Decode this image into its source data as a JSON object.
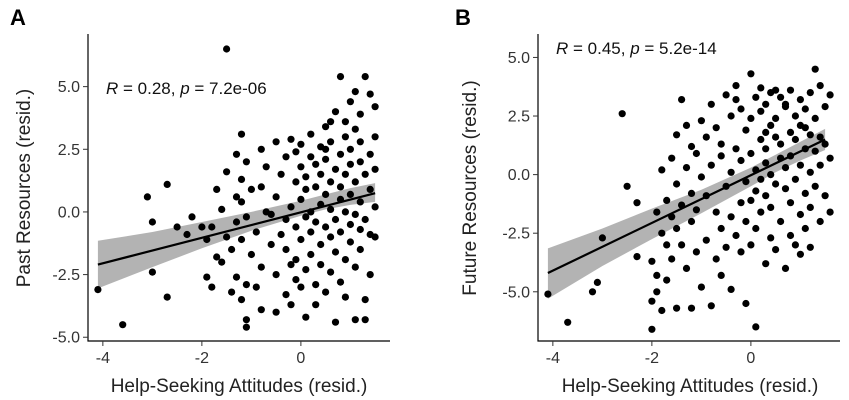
{
  "chart_data": [
    {
      "type": "scatter",
      "panel": "A",
      "xlabel": "Help-Seeking Attitudes (resid.)",
      "ylabel": "Past Resources (resid.)",
      "xlim": [
        -4.3,
        1.8
      ],
      "ylim": [
        -5.15,
        7.1
      ],
      "x_ticks": [
        -4,
        -2,
        0
      ],
      "x_tick_labels": [
        "-4",
        "-2",
        "0"
      ],
      "y_ticks": [
        -5,
        -2.5,
        0,
        2.5,
        5
      ],
      "y_tick_labels": [
        "-5.0",
        "-2.5",
        "0.0",
        "2.5",
        "5.0"
      ],
      "grid": false,
      "annotation": {
        "R_label": "R",
        "r_text": " = 0.28, ",
        "p_label": "p",
        "p_text": " = 7.2e-06"
      },
      "fit_line": {
        "x": [
          -4.1,
          1.5
        ],
        "y": [
          -2.1,
          0.75
        ]
      },
      "confidence_band": {
        "x": [
          -4.1,
          -3.0,
          -2.0,
          -1.0,
          0.0,
          0.5,
          1.0,
          1.5
        ],
        "lower": [
          -3.05,
          -2.2,
          -1.45,
          -0.75,
          -0.15,
          0.1,
          0.28,
          0.4
        ],
        "upper": [
          -1.15,
          -0.8,
          -0.4,
          -0.0,
          0.45,
          0.7,
          0.95,
          1.15
        ]
      },
      "points": [
        [
          -1.5,
          6.5
        ],
        [
          -4.1,
          -3.1
        ],
        [
          -3.6,
          -4.5
        ],
        [
          -3.1,
          0.6
        ],
        [
          -3.0,
          -0.4
        ],
        [
          -3.0,
          -2.4
        ],
        [
          -2.7,
          1.1
        ],
        [
          -2.7,
          -3.4
        ],
        [
          -2.5,
          -0.6
        ],
        [
          -2.3,
          -0.9
        ],
        [
          -2.2,
          -0.2
        ],
        [
          -2.0,
          -0.6
        ],
        [
          -1.9,
          -1.1
        ],
        [
          -1.9,
          -2.6
        ],
        [
          -1.8,
          -3.0
        ],
        [
          -1.8,
          -0.6
        ],
        [
          -1.7,
          -1.8
        ],
        [
          -1.7,
          0.9
        ],
        [
          -1.6,
          0.1
        ],
        [
          -1.6,
          -2.0
        ],
        [
          -1.5,
          -1.0
        ],
        [
          -1.5,
          1.6
        ],
        [
          -1.4,
          -1.5
        ],
        [
          -1.4,
          -3.2
        ],
        [
          -1.3,
          2.3
        ],
        [
          -1.3,
          0.6
        ],
        [
          -1.3,
          -0.4
        ],
        [
          -1.3,
          -2.6
        ],
        [
          -1.2,
          3.1
        ],
        [
          -1.2,
          1.3
        ],
        [
          -1.2,
          0.4
        ],
        [
          -1.2,
          -1.1
        ],
        [
          -1.2,
          -3.5
        ],
        [
          -1.1,
          -4.6
        ],
        [
          -1.1,
          -4.3
        ],
        [
          -1.1,
          -2.9
        ],
        [
          -1.1,
          2.0
        ],
        [
          -1.1,
          -0.2
        ],
        [
          -1.0,
          0.9
        ],
        [
          -1.0,
          -1.7
        ],
        [
          -0.9,
          -3.0
        ],
        [
          -0.9,
          -0.8
        ],
        [
          -0.8,
          2.5
        ],
        [
          -0.8,
          1.0
        ],
        [
          -0.8,
          -2.2
        ],
        [
          -0.8,
          -3.9
        ],
        [
          -0.7,
          0.0
        ],
        [
          -0.7,
          1.8
        ],
        [
          -0.6,
          -1.3
        ],
        [
          -0.6,
          -0.1
        ],
        [
          -0.5,
          2.8
        ],
        [
          -0.5,
          0.6
        ],
        [
          -0.5,
          -2.5
        ],
        [
          -0.5,
          -4.0
        ],
        [
          -0.4,
          -0.9
        ],
        [
          -0.4,
          1.5
        ],
        [
          -0.3,
          2.2
        ],
        [
          -0.3,
          -1.5
        ],
        [
          -0.3,
          -3.3
        ],
        [
          -0.3,
          -0.3
        ],
        [
          -0.2,
          2.9
        ],
        [
          -0.2,
          0.2
        ],
        [
          -0.2,
          -2.1
        ],
        [
          -0.2,
          -3.7
        ],
        [
          -0.1,
          1.2
        ],
        [
          -0.1,
          -0.6
        ],
        [
          -0.1,
          -1.9
        ],
        [
          -0.1,
          2.4
        ],
        [
          -0.1,
          -2.7
        ],
        [
          0.0,
          1.8
        ],
        [
          0.0,
          0.5
        ],
        [
          0.0,
          -1.1
        ],
        [
          0.0,
          -3.0
        ],
        [
          0.0,
          2.7
        ],
        [
          0.1,
          -0.2
        ],
        [
          0.1,
          1.4
        ],
        [
          0.1,
          -2.3
        ],
        [
          0.1,
          -4.2
        ],
        [
          0.1,
          0.9
        ],
        [
          0.2,
          2.2
        ],
        [
          0.2,
          -0.8
        ],
        [
          0.2,
          -1.7
        ],
        [
          0.2,
          0.0
        ],
        [
          0.2,
          3.1
        ],
        [
          0.3,
          1.0
        ],
        [
          0.3,
          -2.9
        ],
        [
          0.3,
          -0.4
        ],
        [
          0.3,
          1.9
        ],
        [
          0.3,
          -3.7
        ],
        [
          0.4,
          2.6
        ],
        [
          0.4,
          0.3
        ],
        [
          0.4,
          -1.3
        ],
        [
          0.4,
          1.5
        ],
        [
          0.4,
          -2.1
        ],
        [
          0.5,
          3.4
        ],
        [
          0.5,
          0.7
        ],
        [
          0.5,
          -0.6
        ],
        [
          0.5,
          2.1
        ],
        [
          0.5,
          -3.2
        ],
        [
          0.6,
          3.6
        ],
        [
          0.6,
          1.2
        ],
        [
          0.6,
          -1.0
        ],
        [
          0.6,
          0.1
        ],
        [
          0.6,
          -2.4
        ],
        [
          0.6,
          2.8
        ],
        [
          0.7,
          1.7
        ],
        [
          0.7,
          -0.3
        ],
        [
          0.7,
          -1.6
        ],
        [
          0.7,
          -4.4
        ],
        [
          0.8,
          5.4
        ],
        [
          0.8,
          2.3
        ],
        [
          0.8,
          0.5
        ],
        [
          0.8,
          -0.8
        ],
        [
          0.8,
          1.0
        ],
        [
          0.8,
          -2.8
        ],
        [
          0.9,
          3.0
        ],
        [
          0.9,
          -1.9
        ],
        [
          0.9,
          1.5
        ],
        [
          0.9,
          0.0
        ],
        [
          0.9,
          -3.4
        ],
        [
          1.0,
          2.5
        ],
        [
          1.0,
          4.4
        ],
        [
          1.0,
          -0.5
        ],
        [
          1.0,
          1.9
        ],
        [
          1.0,
          -1.2
        ],
        [
          1.0,
          0.7
        ],
        [
          1.1,
          4.8
        ],
        [
          1.1,
          3.3
        ],
        [
          1.1,
          -2.2
        ],
        [
          1.1,
          1.2
        ],
        [
          1.1,
          -0.1
        ],
        [
          1.2,
          2.0
        ],
        [
          1.2,
          -0.7
        ],
        [
          1.2,
          0.4
        ],
        [
          1.2,
          -1.5
        ],
        [
          1.2,
          2.8
        ],
        [
          1.3,
          5.4
        ],
        [
          1.3,
          -3.5
        ],
        [
          1.3,
          1.5
        ],
        [
          1.3,
          -4.3
        ],
        [
          1.3,
          -0.3
        ],
        [
          1.4,
          2.3
        ],
        [
          1.4,
          0.9
        ],
        [
          1.4,
          -0.9
        ],
        [
          1.4,
          -2.5
        ],
        [
          1.5,
          4.2
        ],
        [
          1.5,
          1.7
        ],
        [
          1.5,
          0.2
        ],
        [
          1.5,
          -1.0
        ],
        [
          1.5,
          3.0
        ],
        [
          1.4,
          4.7
        ],
        [
          1.2,
          3.9
        ],
        [
          0.9,
          3.6
        ],
        [
          0.7,
          4.0
        ],
        [
          0.5,
          2.5
        ],
        [
          1.1,
          -4.3
        ]
      ]
    },
    {
      "type": "scatter",
      "panel": "B",
      "xlabel": "Help-Seeking Attitudes (resid.)",
      "ylabel": "Future Resources (resid.)",
      "xlim": [
        -4.3,
        1.8
      ],
      "ylim": [
        -7.1,
        6.0
      ],
      "x_ticks": [
        -4,
        -2,
        0
      ],
      "x_tick_labels": [
        "-4",
        "-2",
        "0"
      ],
      "y_ticks": [
        -5,
        -2.5,
        0,
        2.5,
        5
      ],
      "y_tick_labels": [
        "-5.0",
        "-2.5",
        "0.0",
        "2.5",
        "5.0"
      ],
      "grid": false,
      "annotation": {
        "R_label": "R",
        "r_text": " = 0.45, ",
        "p_label": "p",
        "p_text": " = 5.2e-14"
      },
      "fit_line": {
        "x": [
          -4.1,
          1.5
        ],
        "y": [
          -4.2,
          1.5
        ]
      },
      "confidence_band": {
        "x": [
          -4.1,
          -3.0,
          -2.0,
          -1.0,
          0.0,
          0.5,
          1.0,
          1.5
        ],
        "lower": [
          -5.3,
          -3.9,
          -2.75,
          -1.65,
          -0.5,
          0.1,
          0.6,
          1.05
        ],
        "upper": [
          -3.15,
          -2.3,
          -1.45,
          -0.65,
          0.3,
          0.85,
          1.4,
          1.95
        ]
      },
      "points": [
        [
          -4.1,
          -5.1
        ],
        [
          -3.7,
          -6.3
        ],
        [
          -3.2,
          -5.0
        ],
        [
          -3.1,
          -4.6
        ],
        [
          -3.0,
          -2.7
        ],
        [
          -2.6,
          2.6
        ],
        [
          -2.5,
          -0.5
        ],
        [
          -2.3,
          -3.5
        ],
        [
          -2.0,
          -5.4
        ],
        [
          -2.0,
          -6.6
        ],
        [
          -2.0,
          -3.7
        ],
        [
          -1.9,
          -1.6
        ],
        [
          -1.9,
          -4.3
        ],
        [
          -1.9,
          -5.0
        ],
        [
          -1.8,
          0.2
        ],
        [
          -1.8,
          -2.5
        ],
        [
          -1.8,
          -5.8
        ],
        [
          -1.7,
          -1.1
        ],
        [
          -1.7,
          -3.0
        ],
        [
          -1.7,
          -4.5
        ],
        [
          -1.6,
          0.7
        ],
        [
          -1.6,
          -1.8
        ],
        [
          -1.6,
          -3.6
        ],
        [
          -1.5,
          1.7
        ],
        [
          -1.5,
          -0.4
        ],
        [
          -1.5,
          -2.3
        ],
        [
          -1.5,
          -5.7
        ],
        [
          -1.4,
          3.2
        ],
        [
          -1.4,
          -1.3
        ],
        [
          -1.4,
          -3.0
        ],
        [
          -1.3,
          0.3
        ],
        [
          -1.3,
          2.1
        ],
        [
          -1.3,
          -4.0
        ],
        [
          -1.2,
          -0.8
        ],
        [
          -1.2,
          -2.0
        ],
        [
          -1.2,
          1.2
        ],
        [
          -1.2,
          -5.7
        ],
        [
          -1.1,
          -1.5
        ],
        [
          -1.1,
          0.9
        ],
        [
          -1.1,
          -3.3
        ],
        [
          -1.0,
          2.3
        ],
        [
          -1.0,
          -0.1
        ],
        [
          -1.0,
          -4.8
        ],
        [
          -0.9,
          1.6
        ],
        [
          -0.9,
          -2.8
        ],
        [
          -0.9,
          -0.9
        ],
        [
          -0.8,
          3.0
        ],
        [
          -0.8,
          0.4
        ],
        [
          -0.8,
          -5.6
        ],
        [
          -0.7,
          -1.6
        ],
        [
          -0.7,
          2.0
        ],
        [
          -0.7,
          -3.6
        ],
        [
          -0.6,
          0.8
        ],
        [
          -0.6,
          -2.3
        ],
        [
          -0.6,
          1.3
        ],
        [
          -0.5,
          3.4
        ],
        [
          -0.5,
          -0.5
        ],
        [
          -0.5,
          -3.1
        ],
        [
          -0.4,
          2.5
        ],
        [
          -0.4,
          0.1
        ],
        [
          -0.4,
          -1.8
        ],
        [
          -0.4,
          -4.9
        ],
        [
          -0.3,
          1.1
        ],
        [
          -0.3,
          -2.6
        ],
        [
          -0.3,
          3.8
        ],
        [
          -0.2,
          -1.2
        ],
        [
          -0.2,
          0.6
        ],
        [
          -0.2,
          2.8
        ],
        [
          -0.2,
          -3.3
        ],
        [
          -0.1,
          -0.3
        ],
        [
          -0.1,
          1.9
        ],
        [
          -0.1,
          -2.0
        ],
        [
          -0.1,
          -5.5
        ],
        [
          0.0,
          4.3
        ],
        [
          0.0,
          0.9
        ],
        [
          0.0,
          -1.1
        ],
        [
          0.0,
          2.4
        ],
        [
          0.0,
          -3.0
        ],
        [
          0.1,
          3.3
        ],
        [
          0.1,
          0.2
        ],
        [
          0.1,
          -0.7
        ],
        [
          0.1,
          -2.3
        ],
        [
          0.1,
          -6.5
        ],
        [
          0.2,
          1.5
        ],
        [
          0.2,
          3.7
        ],
        [
          0.2,
          -0.2
        ],
        [
          0.2,
          -1.6
        ],
        [
          0.2,
          2.7
        ],
        [
          0.3,
          0.5
        ],
        [
          0.3,
          -3.8
        ],
        [
          0.3,
          1.1
        ],
        [
          0.3,
          3.0
        ],
        [
          0.3,
          -0.9
        ],
        [
          0.4,
          2.1
        ],
        [
          0.4,
          -2.7
        ],
        [
          0.4,
          0.0
        ],
        [
          0.4,
          3.5
        ],
        [
          0.4,
          -1.4
        ],
        [
          0.5,
          1.6
        ],
        [
          0.5,
          3.6
        ],
        [
          0.5,
          -0.4
        ],
        [
          0.5,
          2.4
        ],
        [
          0.5,
          -3.2
        ],
        [
          0.6,
          0.7
        ],
        [
          0.6,
          3.3
        ],
        [
          0.6,
          -2.0
        ],
        [
          0.6,
          1.3
        ],
        [
          0.7,
          -0.6
        ],
        [
          0.7,
          2.9
        ],
        [
          0.7,
          -4.0
        ],
        [
          0.7,
          0.3
        ],
        [
          0.8,
          1.8
        ],
        [
          0.8,
          3.6
        ],
        [
          0.8,
          -1.2
        ],
        [
          0.8,
          -2.6
        ],
        [
          0.8,
          0.8
        ],
        [
          0.9,
          2.5
        ],
        [
          0.9,
          -0.2
        ],
        [
          0.9,
          -3.0
        ],
        [
          0.9,
          1.5
        ],
        [
          1.0,
          3.2
        ],
        [
          1.0,
          0.4
        ],
        [
          1.0,
          -1.7
        ],
        [
          1.0,
          2.1
        ],
        [
          1.0,
          -3.4
        ],
        [
          1.1,
          1.1
        ],
        [
          1.1,
          -0.8
        ],
        [
          1.1,
          2.8
        ],
        [
          1.1,
          -2.3
        ],
        [
          1.2,
          3.5
        ],
        [
          1.2,
          0.1
        ],
        [
          1.2,
          1.7
        ],
        [
          1.2,
          -1.4
        ],
        [
          1.2,
          -3.1
        ],
        [
          1.3,
          4.5
        ],
        [
          1.3,
          2.4
        ],
        [
          1.3,
          -0.5
        ],
        [
          1.3,
          1.0
        ],
        [
          1.4,
          3.8
        ],
        [
          1.4,
          -2.0
        ],
        [
          1.4,
          1.6
        ],
        [
          1.4,
          0.4
        ],
        [
          1.5,
          2.9
        ],
        [
          1.5,
          -0.9
        ],
        [
          1.5,
          1.3
        ],
        [
          1.6,
          3.4
        ],
        [
          1.6,
          -1.6
        ],
        [
          1.6,
          0.7
        ],
        [
          -0.3,
          3.2
        ],
        [
          0.7,
          3.0
        ],
        [
          -2.3,
          -1.2
        ],
        [
          1.1,
          2.0
        ],
        [
          0.3,
          1.8
        ],
        [
          -0.6,
          -4.3
        ]
      ]
    }
  ]
}
